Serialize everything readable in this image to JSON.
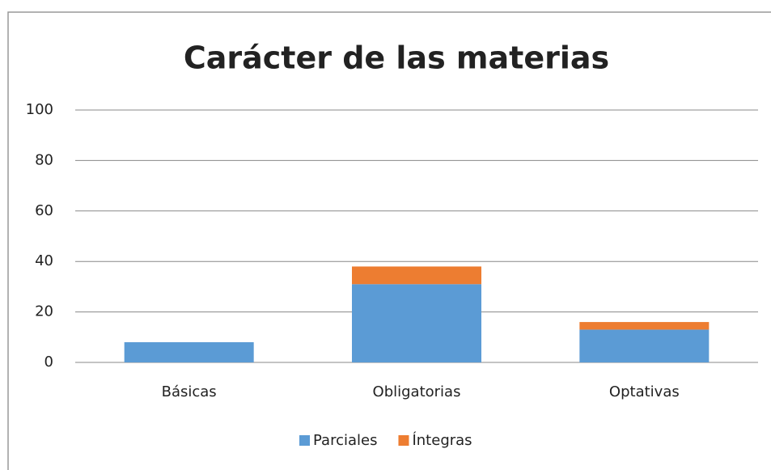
{
  "chart_data": {
    "type": "stacked_bar",
    "title": "Carácter de las materias",
    "categories": [
      "Básicas",
      "Obligatorias",
      "Optativas"
    ],
    "series": [
      {
        "name": "Parciales",
        "color": "#5b9bd5",
        "values": [
          8,
          31,
          13
        ]
      },
      {
        "name": "Íntegras",
        "color": "#ed7d31",
        "values": [
          0,
          7,
          3
        ]
      }
    ],
    "ylim": [
      0,
      100
    ],
    "yticks": [
      0,
      20,
      40,
      60,
      80,
      100
    ],
    "grid": true,
    "legend": "bottom"
  }
}
